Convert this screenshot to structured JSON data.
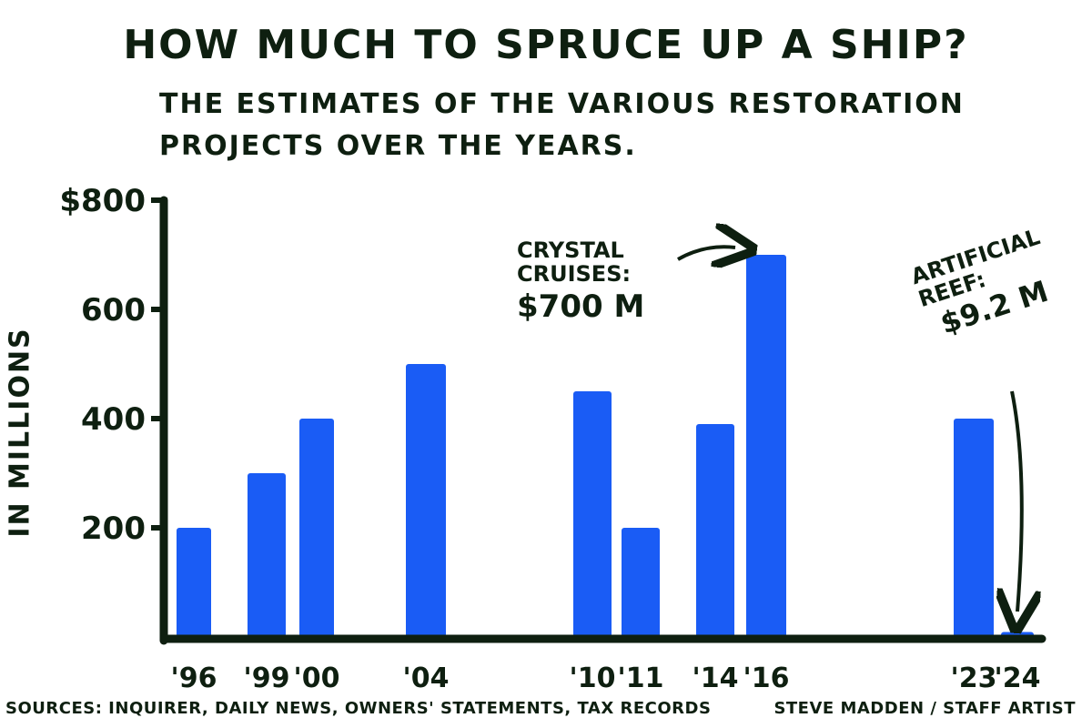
{
  "title": "How much to spruce up a ship?",
  "subtitle": "The estimates of the various restoration projects over the years.",
  "footer": {
    "sources": "Sources: Inquirer, Daily News, owners' statements, tax records",
    "credit": "Steve Madden / Staff Artist"
  },
  "annotations": {
    "crystal_line1": "Crystal",
    "crystal_line2": "cruises:",
    "crystal_value": "$700 m",
    "reef_line1": "Artificial",
    "reef_line2": "reef:",
    "reef_value": "$9.2 m"
  },
  "colors": {
    "bar": "#1a5cf5",
    "ink": "#0e1f10"
  },
  "chart_data": {
    "type": "bar",
    "categories": [
      "'96",
      "'99",
      "'00",
      "'04",
      "'10",
      "'11",
      "'14",
      "'16",
      "'23",
      "'24"
    ],
    "values": [
      200,
      300,
      400,
      500,
      450,
      200,
      390,
      700,
      400,
      9.2
    ],
    "ylabel": "In millions",
    "ylim": [
      0,
      800
    ],
    "yticks": [
      200,
      400,
      600,
      800
    ],
    "ytick_labels": [
      "200",
      "400",
      "600",
      "$800"
    ],
    "grid": false
  }
}
